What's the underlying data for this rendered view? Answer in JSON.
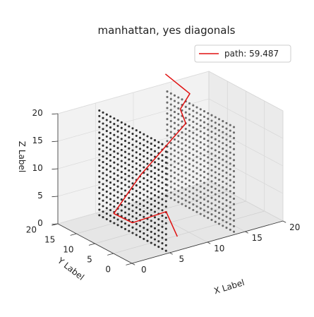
{
  "chart_data": {
    "type": "scatter3d",
    "title": "manhattan, yes diagonals",
    "xlabel": "X Label",
    "ylabel": "Y Label",
    "zlabel": "Z Label",
    "xlim": [
      0,
      20
    ],
    "ylim": [
      0,
      20
    ],
    "zlim": [
      0,
      20
    ],
    "xticks": [
      "0",
      "5",
      "10",
      "15",
      "20"
    ],
    "yticks": [
      "0",
      "5",
      "10",
      "15",
      "20"
    ],
    "zticks": [
      "0",
      "5",
      "10",
      "15",
      "20"
    ],
    "grid": true,
    "legend": {
      "position": "top-right",
      "entries": [
        "path: 59.487"
      ]
    },
    "colors": {
      "path": "#e01010",
      "obstacles": "#303030",
      "pane": "#f2f2f2",
      "grid": "#d8d8d8"
    },
    "obstacles": [
      {
        "x": 5,
        "y_range": [
          1,
          19
        ],
        "z_range": [
          0,
          19
        ],
        "step": 1
      },
      {
        "x": 14,
        "y_range": [
          1,
          19
        ],
        "z_range": [
          0,
          19
        ],
        "step": 1
      }
    ],
    "series": [
      {
        "name": "path: 59.487",
        "type": "line",
        "points": [
          [
            6.5,
            1.0,
            2.0
          ],
          [
            6.0,
            3.0,
            6.0
          ],
          [
            3.5,
            7.0,
            3.5
          ],
          [
            2.5,
            10.0,
            4.5
          ],
          [
            7.0,
            12.0,
            9.0
          ],
          [
            14.0,
            14.0,
            15.0
          ],
          [
            14.5,
            16.5,
            16.5
          ],
          [
            16.5,
            18.0,
            18.0
          ],
          [
            14.0,
            19.5,
            22.0
          ]
        ]
      }
    ]
  }
}
